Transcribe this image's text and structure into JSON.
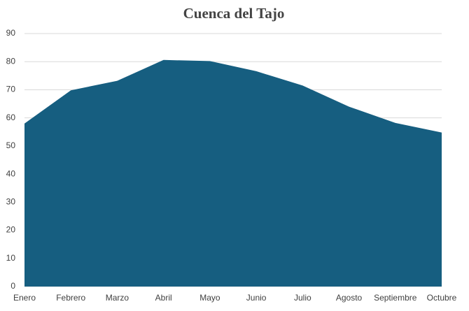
{
  "chart_data": {
    "type": "area",
    "title": "Cuenca del Tajo",
    "categories": [
      "Enero",
      "Febrero",
      "Marzo",
      "Abril",
      "Mayo",
      "Junio",
      "Julio",
      "Agosto",
      "Septiembre",
      "Octubre"
    ],
    "values": [
      58,
      69.8,
      73.2,
      80.6,
      80.2,
      76.6,
      71.5,
      64,
      58.2,
      54.8
    ],
    "color": "#165e80",
    "ylim": [
      0,
      90
    ],
    "yticks": [
      0,
      10,
      20,
      30,
      40,
      50,
      60,
      70,
      80,
      90
    ],
    "grid": true
  }
}
